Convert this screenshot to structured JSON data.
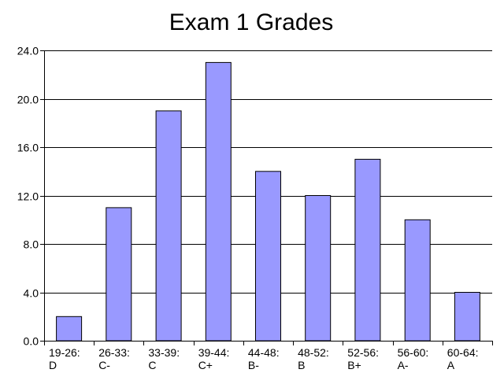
{
  "chart_data": {
    "type": "bar",
    "title": "Exam 1 Grades",
    "xlabel": "",
    "ylabel": "",
    "categories": [
      [
        "19-26:",
        "D"
      ],
      [
        "26-33:",
        "C-"
      ],
      [
        "33-39:",
        "C"
      ],
      [
        "39-44:",
        "C+"
      ],
      [
        "44-48:",
        "B-"
      ],
      [
        "48-52:",
        "B"
      ],
      [
        "52-56:",
        "B+"
      ],
      [
        "56-60:",
        "A-"
      ],
      [
        "60-64:",
        "A"
      ]
    ],
    "values": [
      2,
      11,
      19,
      23,
      14,
      12,
      15,
      10,
      4
    ],
    "ylim": [
      0,
      24
    ],
    "yticks": [
      "0.0",
      "4.0",
      "8.0",
      "12.0",
      "16.0",
      "20.0",
      "24.0"
    ],
    "ytick_values": [
      0,
      4,
      8,
      12,
      16,
      20,
      24
    ],
    "grid": true,
    "legend": "none",
    "colors": {
      "bar_fill": "#9999ff",
      "bar_stroke": "#000000",
      "grid": "#000000",
      "axis": "#000000",
      "text": "#000000"
    }
  }
}
